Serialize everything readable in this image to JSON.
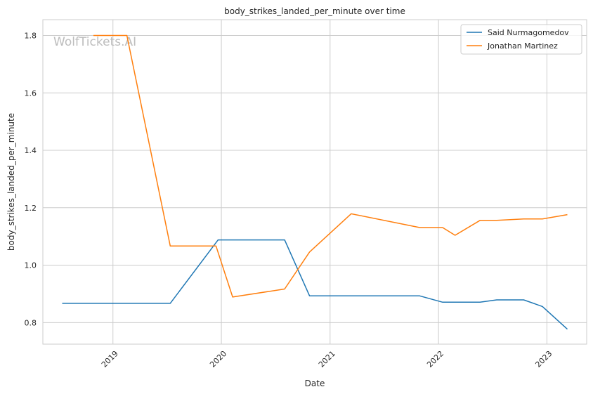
{
  "chart_data": {
    "type": "line",
    "title": "body_strikes_landed_per_minute over time",
    "xlabel": "Date",
    "ylabel": "body_strikes_landed_per_minute",
    "watermark": "WolfTickets.AI",
    "xlim": [
      "2018-05-10",
      "2023-05-15"
    ],
    "ylim": [
      0.725,
      1.855
    ],
    "x_ticks": [
      "2019-01-01",
      "2020-01-01",
      "2021-01-01",
      "2022-01-01",
      "2023-01-01"
    ],
    "x_tick_labels": [
      "2019",
      "2020",
      "2021",
      "2022",
      "2023"
    ],
    "y_ticks": [
      0.8,
      1.0,
      1.2,
      1.4,
      1.6,
      1.8
    ],
    "y_tick_labels": [
      "0.8",
      "1.0",
      "1.2",
      "1.4",
      "1.6",
      "1.8"
    ],
    "grid": true,
    "legend_position": "top-right",
    "series": [
      {
        "name": "Said Nurmagomedov",
        "color": "#1f77b4",
        "points": [
          {
            "x": "2018-07-14",
            "y": 0.867
          },
          {
            "x": "2019-07-13",
            "y": 0.867
          },
          {
            "x": "2019-12-21",
            "y": 1.088
          },
          {
            "x": "2020-08-01",
            "y": 1.088
          },
          {
            "x": "2020-10-24",
            "y": 0.893
          },
          {
            "x": "2021-10-30",
            "y": 0.893
          },
          {
            "x": "2022-01-15",
            "y": 0.871
          },
          {
            "x": "2022-05-21",
            "y": 0.871
          },
          {
            "x": "2022-07-16",
            "y": 0.879
          },
          {
            "x": "2022-10-15",
            "y": 0.879
          },
          {
            "x": "2022-12-17",
            "y": 0.856
          },
          {
            "x": "2023-03-11",
            "y": 0.777
          }
        ]
      },
      {
        "name": "Jonathan Martinez",
        "color": "#ff7f0e",
        "points": [
          {
            "x": "2018-10-27",
            "y": 1.8
          },
          {
            "x": "2019-02-17",
            "y": 1.8
          },
          {
            "x": "2019-07-13",
            "y": 1.067
          },
          {
            "x": "2019-12-14",
            "y": 1.067
          },
          {
            "x": "2020-02-08",
            "y": 0.889
          },
          {
            "x": "2020-08-01",
            "y": 0.917
          },
          {
            "x": "2020-10-24",
            "y": 1.046
          },
          {
            "x": "2021-03-13",
            "y": 1.179
          },
          {
            "x": "2021-10-30",
            "y": 1.131
          },
          {
            "x": "2022-01-15",
            "y": 1.131
          },
          {
            "x": "2022-02-26",
            "y": 1.104
          },
          {
            "x": "2022-05-21",
            "y": 1.156
          },
          {
            "x": "2022-07-16",
            "y": 1.156
          },
          {
            "x": "2022-10-15",
            "y": 1.161
          },
          {
            "x": "2022-12-17",
            "y": 1.161
          },
          {
            "x": "2023-03-11",
            "y": 1.176
          }
        ]
      }
    ]
  }
}
